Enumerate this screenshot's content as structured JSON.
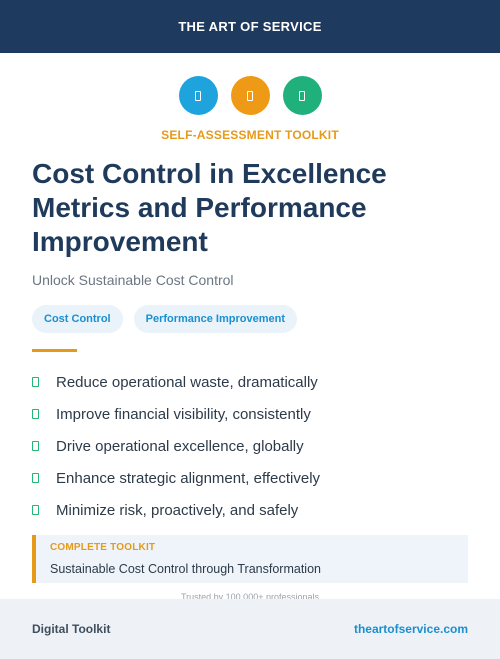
{
  "header": {
    "title": "THE ART OF SERVICE"
  },
  "icons": [
    {
      "name": "document-icon",
      "color": "#1fa3dc"
    },
    {
      "name": "document-icon",
      "color": "#ee9a16"
    },
    {
      "name": "document-icon",
      "color": "#20b07c"
    }
  ],
  "kicker": "SELF-ASSESSMENT TOOLKIT",
  "title": "Cost Control in Excellence Metrics and Performance Improvement",
  "subtitle": "Unlock Sustainable Cost Control",
  "tags": [
    "Cost Control",
    "Performance Improvement"
  ],
  "benefits": [
    "Reduce operational waste, dramatically",
    "Improve financial visibility, consistently",
    "Drive operational excellence, globally",
    "Enhance strategic alignment, effectively",
    "Minimize risk, proactively, and safely"
  ],
  "callout": {
    "label": "COMPLETE TOOLKIT",
    "text": "Sustainable Cost Control through Transformation"
  },
  "trusted": "Trusted by 100,000+ professionals",
  "footer": {
    "left": "Digital Toolkit",
    "right": "theartofservice.com"
  }
}
